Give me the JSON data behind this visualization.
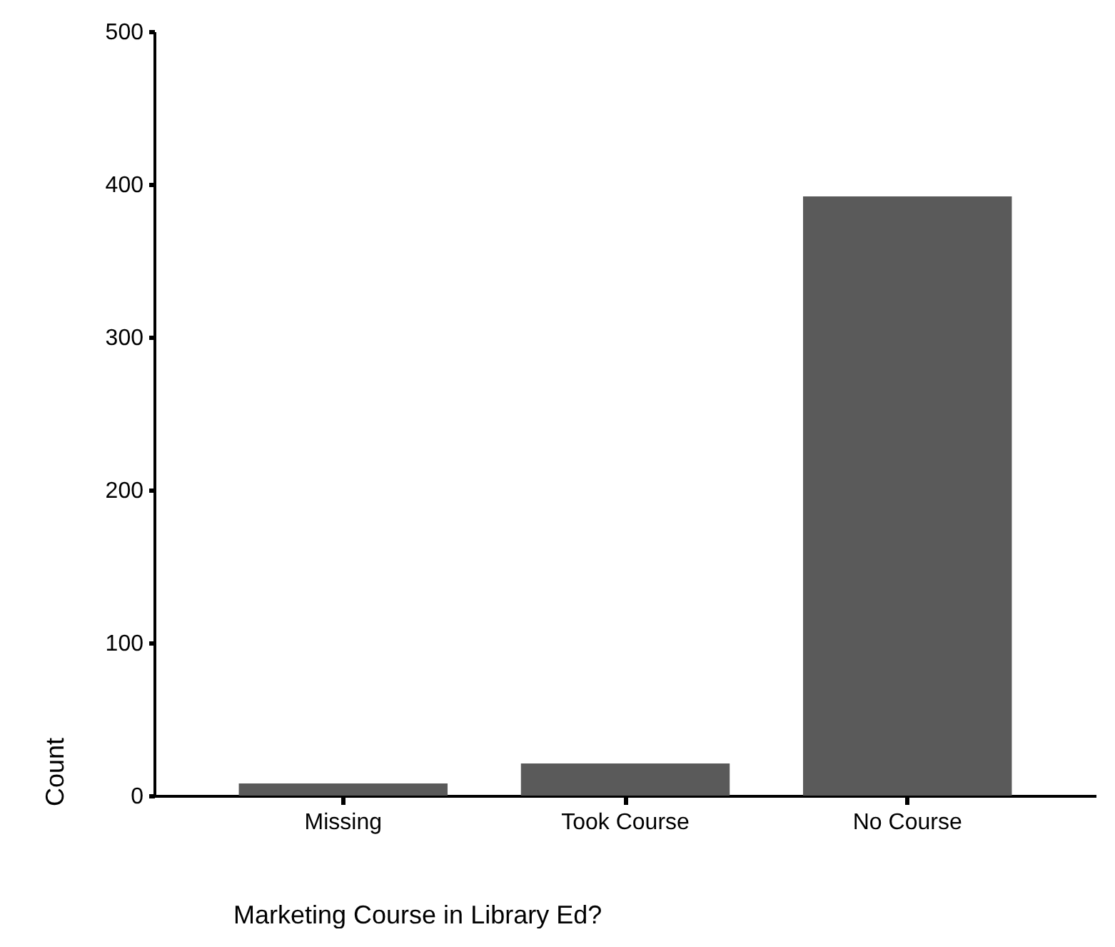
{
  "chart_data": {
    "type": "bar",
    "xlabel": "Marketing Course in Library Ed?",
    "ylabel": "Count",
    "categories": [
      "Missing",
      "Took Course",
      "No Course"
    ],
    "values": [
      8,
      21,
      392
    ],
    "color": "#5a5a5a",
    "ylim": [
      0,
      500
    ],
    "yticks": [
      0,
      100,
      200,
      300,
      400,
      500
    ],
    "grid": false
  }
}
